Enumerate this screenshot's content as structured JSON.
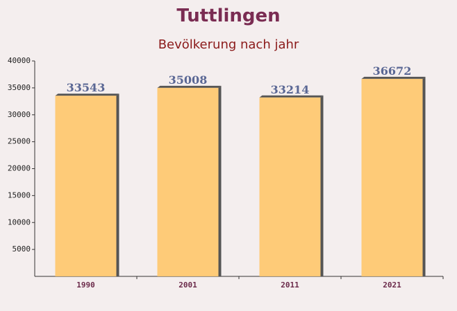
{
  "chart_data": {
    "type": "bar",
    "title": "Tuttlingen",
    "subtitle": "Bevölkerung nach jahr",
    "categories": [
      "1990",
      "2001",
      "2011",
      "2021"
    ],
    "values": [
      33543,
      35008,
      33214,
      36672
    ],
    "color": "#ffc76a",
    "ylim": [
      0,
      40000
    ],
    "yticks": [
      5000,
      10000,
      15000,
      20000,
      25000,
      30000,
      35000,
      40000
    ]
  }
}
